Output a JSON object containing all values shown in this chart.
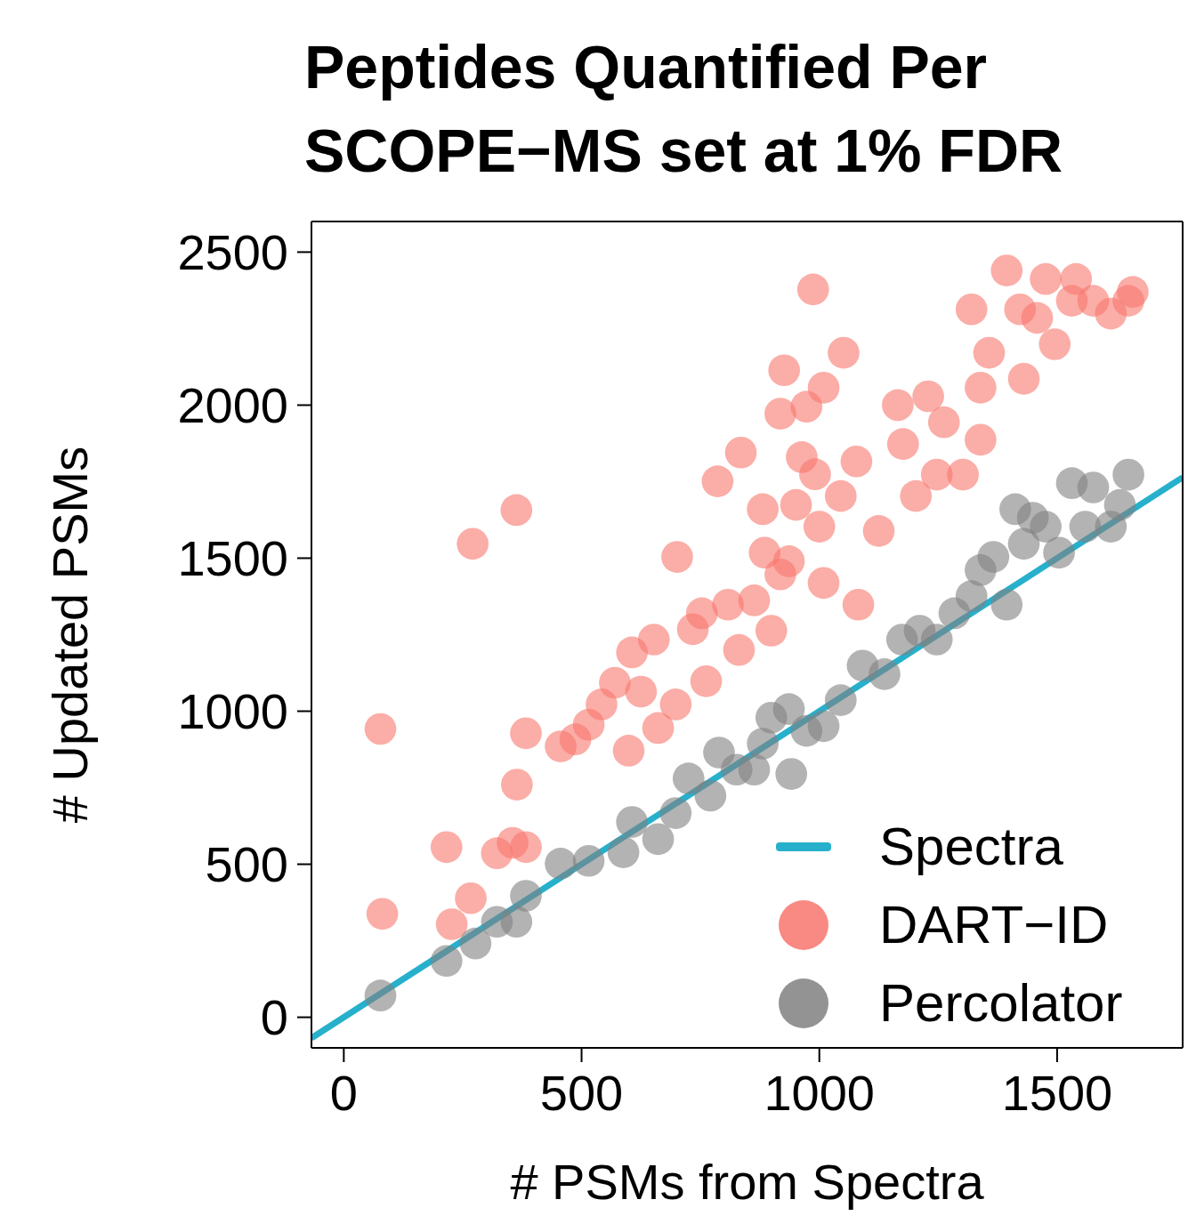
{
  "chart_data": {
    "type": "scatter",
    "title": "Peptides Quantified Per SCOPE−MS set at 1% FDR",
    "xlabel": "# PSMs from Spectra",
    "ylabel": "# Updated PSMs",
    "xlim": [
      -68,
      1764
    ],
    "ylim": [
      -100,
      2600
    ],
    "xticks": [
      0,
      500,
      1000,
      1500
    ],
    "yticks": [
      0,
      500,
      1000,
      1500,
      2000,
      2500
    ],
    "grid": false,
    "legend": "bottom right",
    "series": [
      {
        "name": "Spectra",
        "type": "line",
        "color": "#27b0cc",
        "line_style": "solid",
        "marker": "none",
        "x": [
          -68,
          1764
        ],
        "values": [
          -68,
          1764
        ]
      },
      {
        "name": "DART−ID",
        "type": "scatter",
        "color": "#f8766d",
        "marker": "circle",
        "x": [
          77,
          81,
          271,
          363,
          383,
          364,
          216,
          322,
          355,
          383,
          267,
          227,
          456,
          487,
          515,
          542,
          570,
          599,
          606,
          625,
          661,
          652,
          698,
          701,
          734,
          762,
          753,
          786,
          808,
          831,
          835,
          863,
          885,
          881,
          899,
          918,
          918,
          926,
          936,
          951,
          963,
          973,
          991,
          987,
          1000,
          1009,
          1009,
          1045,
          1051,
          1082,
          1078,
          1125,
          1165,
          1176,
          1203,
          1229,
          1247,
          1262,
          1302,
          1320,
          1339,
          1339,
          1357,
          1394,
          1422,
          1430,
          1458,
          1476,
          1495,
          1531,
          1540,
          1576,
          1613,
          1650,
          1659
        ],
        "values": [
          942,
          338,
          1547,
          1657,
          928,
          760,
          556,
          536,
          570,
          556,
          389,
          304,
          885,
          908,
          956,
          1022,
          1093,
          871,
          1192,
          1064,
          945,
          1234,
          1022,
          1504,
          1268,
          1098,
          1320,
          1751,
          1348,
          1200,
          1845,
          1362,
          1518,
          1660,
          1263,
          1447,
          1972,
          2114,
          1490,
          1674,
          1830,
          1995,
          1774,
          2378,
          1603,
          2057,
          1419,
          1703,
          2171,
          1348,
          1816,
          1589,
          2000,
          1873,
          1703,
          2029,
          1773,
          1944,
          1773,
          2313,
          1887,
          2057,
          2171,
          2440,
          2313,
          2086,
          2285,
          2412,
          2199,
          2341,
          2412,
          2341,
          2299,
          2341,
          2370
        ]
      },
      {
        "name": "Percolator",
        "type": "scatter",
        "color": "#808080",
        "marker": "circle",
        "x": [
          77,
          216,
          277,
          322,
          363,
          383,
          456,
          515,
          588,
          606,
          661,
          698,
          725,
          771,
          789,
          826,
          863,
          881,
          899,
          936,
          941,
          973,
          1009,
          1045,
          1091,
          1137,
          1174,
          1211,
          1247,
          1284,
          1320,
          1339,
          1366,
          1394,
          1412,
          1430,
          1449,
          1476,
          1504,
          1531,
          1559,
          1576,
          1613,
          1632,
          1650
        ],
        "values": [
          71,
          184,
          241,
          312,
          312,
          397,
          502,
          511,
          539,
          638,
          582,
          667,
          780,
          724,
          865,
          809,
          809,
          894,
          979,
          1007,
          795,
          936,
          951,
          1036,
          1149,
          1121,
          1234,
          1263,
          1234,
          1320,
          1376,
          1461,
          1504,
          1348,
          1660,
          1547,
          1632,
          1603,
          1518,
          1745,
          1603,
          1731,
          1603,
          1674,
          1773
        ]
      }
    ]
  }
}
